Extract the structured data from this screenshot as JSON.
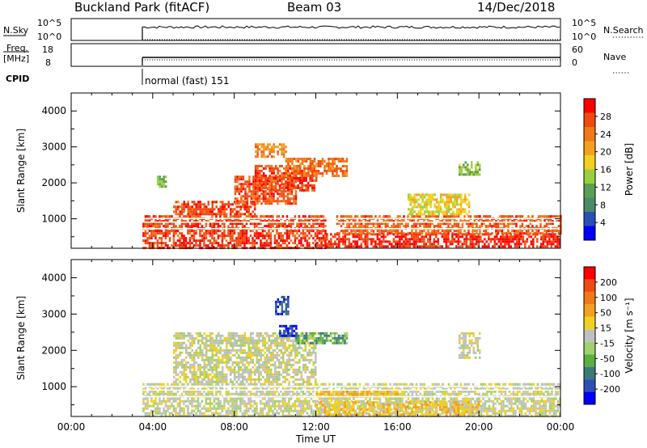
{
  "header": {
    "station": "Buckland Park (fitACF)",
    "beam": "Beam 03",
    "date": "14/Dec/2018"
  },
  "aux_panels": {
    "nsky_label": "N.Sky",
    "nsky_tick_top": "10^5",
    "nsky_tick_bottom": "10^0",
    "nsearch_label": "N.Search",
    "nsearch_tick_top": "10^5",
    "nsearch_tick_bottom": "10^0",
    "freq_label_line1": "Freq.",
    "freq_label_line2": "[MHz]",
    "freq_tick_top": "18",
    "freq_tick_bottom": "8",
    "nave_label": "Nave",
    "nave_tick_top": "60",
    "nave_tick_bottom": "0",
    "cpid_label": "CPID",
    "cpid_value": "normal (fast) 151"
  },
  "chart_data": [
    {
      "type": "heatmap",
      "name": "power",
      "ylabel": "Slant Range [km]",
      "yticks": [
        "1000",
        "2000",
        "3000",
        "4000"
      ],
      "ylim": [
        180,
        4500
      ],
      "xlim": [
        0,
        24
      ],
      "colorbar_label": "Power [dB]",
      "colorbar_ticks": [
        "4",
        "8",
        "12",
        "16",
        "20",
        "24",
        "28"
      ],
      "colorbar_colors": [
        "#0000ff",
        "#2b4fb5",
        "#4a8a6a",
        "#5aa050",
        "#9ad040",
        "#f0d020",
        "#f5a020",
        "#f07818",
        "#f04a10",
        "#ff0000"
      ],
      "regions": [
        {
          "t0": 3.5,
          "t1": 12.5,
          "r0": 200,
          "r1": 1100,
          "level": 0.92
        },
        {
          "t0": 12.5,
          "t1": 24.0,
          "r0": 200,
          "r1": 600,
          "level": 0.95
        },
        {
          "t0": 13.0,
          "t1": 20.0,
          "r0": 600,
          "r1": 1100,
          "level": 0.85
        },
        {
          "t0": 20.0,
          "t1": 24.0,
          "r0": 600,
          "r1": 1100,
          "level": 0.88
        },
        {
          "t0": 5.0,
          "t1": 9.0,
          "r0": 1100,
          "r1": 1500,
          "level": 0.9
        },
        {
          "t0": 8.0,
          "t1": 11.0,
          "r0": 1400,
          "r1": 2200,
          "level": 0.88
        },
        {
          "t0": 9.0,
          "t1": 12.0,
          "r0": 1800,
          "r1": 2500,
          "level": 0.9
        },
        {
          "t0": 10.5,
          "t1": 13.5,
          "r0": 2200,
          "r1": 2700,
          "level": 0.8
        },
        {
          "t0": 9.0,
          "t1": 10.5,
          "r0": 2700,
          "r1": 3100,
          "level": 0.75
        },
        {
          "t0": 16.5,
          "t1": 19.5,
          "r0": 1100,
          "r1": 1700,
          "level": 0.55
        },
        {
          "t0": 19.0,
          "t1": 20.0,
          "r0": 2200,
          "r1": 2600,
          "level": 0.4
        },
        {
          "t0": 4.2,
          "t1": 4.6,
          "r0": 1900,
          "r1": 2200,
          "level": 0.35
        }
      ]
    },
    {
      "type": "heatmap",
      "name": "velocity",
      "ylabel": "Slant Range [km]",
      "yticks": [
        "1000",
        "2000",
        "3000",
        "4000"
      ],
      "ylim": [
        180,
        4500
      ],
      "xlim": [
        0,
        24
      ],
      "xticks": [
        "00:00",
        "04:00",
        "08:00",
        "12:00",
        "16:00",
        "20:00",
        "00:00"
      ],
      "xlabel": "Time UT",
      "colorbar_label": "Velocity [m s⁻¹]",
      "colorbar_ticks": [
        "200",
        "100",
        "50",
        "15",
        "-15",
        "-50",
        "-100",
        "-200"
      ],
      "colorbar_colors": [
        "#0000ff",
        "#2b4fb5",
        "#3a7a7a",
        "#5ab040",
        "#a0d070",
        "#c0c0c0",
        "#f0d020",
        "#f5a020",
        "#f07818",
        "#f04a10",
        "#ff0000"
      ],
      "regions": [
        {
          "t0": 3.5,
          "t1": 24.0,
          "r0": 200,
          "r1": 1100,
          "level": 0.5
        },
        {
          "t0": 12.0,
          "t1": 20.0,
          "r0": 200,
          "r1": 600,
          "level": 0.62
        },
        {
          "t0": 5.0,
          "t1": 12.0,
          "r0": 1100,
          "r1": 2500,
          "level": 0.5
        },
        {
          "t0": 11.0,
          "t1": 13.5,
          "r0": 2200,
          "r1": 2500,
          "level": 0.3
        },
        {
          "t0": 10.0,
          "t1": 10.6,
          "r0": 3000,
          "r1": 3500,
          "level": 0.1
        },
        {
          "t0": 10.2,
          "t1": 11.0,
          "r0": 2400,
          "r1": 2700,
          "level": 0.05
        },
        {
          "t0": 12.0,
          "t1": 16.0,
          "r0": 700,
          "r1": 900,
          "level": 0.65
        },
        {
          "t0": 19.0,
          "t1": 20.0,
          "r0": 1800,
          "r1": 2500,
          "level": 0.5
        }
      ]
    }
  ]
}
